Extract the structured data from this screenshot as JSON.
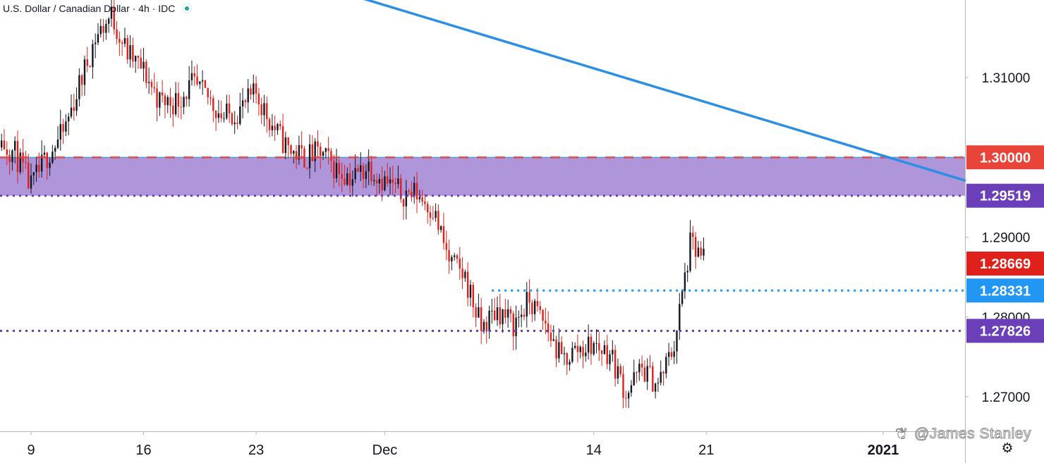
{
  "header": {
    "symbol_title": "U.S. Dollar / Canadian Dollar · 4h · IDC",
    "live_indicator_icon": "green-dot-icon"
  },
  "watermark": {
    "icon": "weibo-icon",
    "text": "@James Stanley"
  },
  "toolbar": {
    "settings_icon": "gear-icon"
  },
  "colors": {
    "bull": "#131722",
    "bear": "#e0201a",
    "trendline": "#2c8fe3",
    "zone": "#a68ad6",
    "level_purple": "#6b3fb8",
    "level_blue": "#2196f3",
    "level_red": "#e8443a"
  },
  "chart_data": {
    "type": "candlestick",
    "title": "U.S. Dollar / Canadian Dollar · 4h · IDC",
    "symbol": "USD/CAD",
    "interval": "4h",
    "source": "IDC",
    "ylim": [
      1.2633,
      1.3215
    ],
    "y_ticks": [
      1.27,
      1.28,
      1.29,
      1.31
    ],
    "y_tick_labels": [
      "1.27000",
      "1.28000",
      "1.29000",
      "1.31000"
    ],
    "x_ticks": [
      "9",
      "16",
      "23",
      "Dec",
      "14",
      "21",
      "2021"
    ],
    "x_range": [
      "2020-11-06",
      "2021-01-01"
    ],
    "price_levels": [
      {
        "label": "1.30000",
        "value": 1.3,
        "color": "#e8443a",
        "line": "dashed"
      },
      {
        "label": "1.29519",
        "value": 1.29519,
        "color": "#6b3fb8",
        "line": "dotted"
      },
      {
        "label": "1.28669",
        "value": 1.28669,
        "color": "#e0201a",
        "line": "none"
      },
      {
        "label": "1.28331",
        "value": 1.28331,
        "color": "#2196f3",
        "line": "dotted"
      },
      {
        "label": "1.27826",
        "value": 1.27826,
        "color": "#6b3fb8",
        "line": "dotted"
      }
    ],
    "zone": {
      "from": 1.29519,
      "to": 1.3,
      "color": "#a68ad6"
    },
    "trendline": {
      "from": [
        "2020-11-27",
        1.3215
      ],
      "to": [
        "2021-01-01",
        1.2971
      ],
      "color": "#2c8fe3"
    },
    "close_trace": [
      [
        "2020-11-06",
        1.3045
      ],
      [
        "2020-11-07",
        1.3022
      ],
      [
        "2020-11-08",
        1.3005
      ],
      [
        "2020-11-09",
        1.2962
      ],
      [
        "2020-11-10",
        1.3002
      ],
      [
        "2020-11-11",
        1.303
      ],
      [
        "2020-11-12",
        1.309
      ],
      [
        "2020-11-13",
        1.315
      ],
      [
        "2020-11-14",
        1.3178
      ],
      [
        "2020-11-15",
        1.313
      ],
      [
        "2020-11-16",
        1.3108
      ],
      [
        "2020-11-17",
        1.307
      ],
      [
        "2020-11-18",
        1.307
      ],
      [
        "2020-11-19",
        1.309
      ],
      [
        "2020-11-20",
        1.3075
      ],
      [
        "2020-11-21",
        1.305
      ],
      [
        "2020-11-22",
        1.306
      ],
      [
        "2020-11-23",
        1.308
      ],
      [
        "2020-11-24",
        1.304
      ],
      [
        "2020-11-25",
        1.301
      ],
      [
        "2020-11-26",
        1.3
      ],
      [
        "2020-11-27",
        1.3005
      ],
      [
        "2020-11-28",
        1.2985
      ],
      [
        "2020-11-29",
        1.2975
      ],
      [
        "2020-11-30",
        1.299
      ],
      [
        "2020-12-01",
        1.297
      ],
      [
        "2020-12-02",
        1.2955
      ],
      [
        "2020-12-03",
        1.2955
      ],
      [
        "2020-12-04",
        1.2935
      ],
      [
        "2020-12-05",
        1.287
      ],
      [
        "2020-12-06",
        1.285
      ],
      [
        "2020-12-07",
        1.2785
      ],
      [
        "2020-12-08",
        1.281
      ],
      [
        "2020-12-09",
        1.279
      ],
      [
        "2020-12-10",
        1.282
      ],
      [
        "2020-12-11",
        1.279
      ],
      [
        "2020-12-12",
        1.2745
      ],
      [
        "2020-12-13",
        1.276
      ],
      [
        "2020-12-14",
        1.2765
      ],
      [
        "2020-12-15",
        1.2755
      ],
      [
        "2020-12-16",
        1.2705
      ],
      [
        "2020-12-17",
        1.2735
      ],
      [
        "2020-12-18",
        1.2715
      ],
      [
        "2020-12-19",
        1.2765
      ],
      [
        "2020-12-20",
        1.289
      ],
      [
        "2020-12-21",
        1.2867
      ]
    ]
  }
}
